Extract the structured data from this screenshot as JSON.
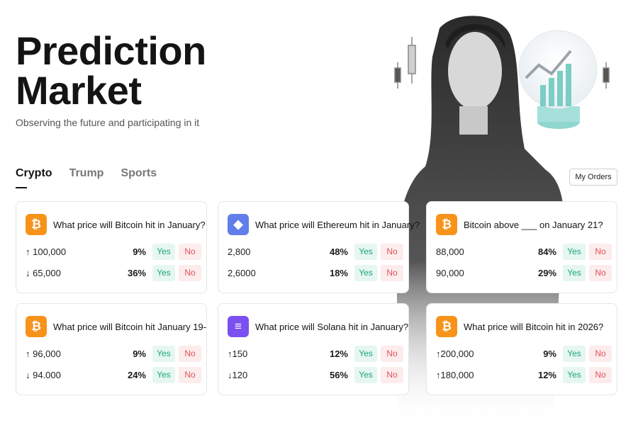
{
  "hero": {
    "title_line1": "Prediction",
    "title_line2": "Market",
    "subtitle": "Observing the future and participating in it"
  },
  "tabs": [
    {
      "label": "Crypto",
      "active": true
    },
    {
      "label": "Trump",
      "active": false
    },
    {
      "label": "Sports",
      "active": false
    }
  ],
  "my_orders_label": "My Orders",
  "colors": {
    "yes_bg": "#e6f6f1",
    "yes_text": "#1ba57a",
    "no_bg": "#fcecec",
    "no_text": "#e0525b",
    "btc": "#f7931a",
    "eth": "#627eea",
    "sol": "#7b4ff0"
  },
  "icons": {
    "btc": "bitcoin-icon",
    "eth": "ethereum-icon",
    "sol": "solana-icon",
    "up": "up-arrow-icon",
    "down": "down-arrow-icon"
  },
  "cards": [
    {
      "coin": "btc",
      "title": "What price will Bitcoin hit in January?",
      "rows": [
        {
          "label": "↑ 100,000",
          "pct": "9%",
          "yes": "Yes",
          "no": "No"
        },
        {
          "label": "↓ 65,000",
          "pct": "36%",
          "yes": "Yes",
          "no": "No"
        }
      ]
    },
    {
      "coin": "eth",
      "title": "What price will Ethereum hit in January?",
      "rows": [
        {
          "label": "2,800",
          "pct": "48%",
          "yes": "Yes",
          "no": "No"
        },
        {
          "label": "2,6000",
          "pct": "18%",
          "yes": "Yes",
          "no": "No"
        }
      ]
    },
    {
      "coin": "btc",
      "title": "Bitcoin above ___ on January 21?",
      "rows": [
        {
          "label": "88,000",
          "pct": "84%",
          "yes": "Yes",
          "no": "No"
        },
        {
          "label": "90,000",
          "pct": "29%",
          "yes": "Yes",
          "no": "No"
        }
      ]
    },
    {
      "coin": "btc",
      "title": "What price will Bitcoin hit January 19-",
      "rows": [
        {
          "label": "↑ 96,000",
          "pct": "9%",
          "yes": "Yes",
          "no": "No"
        },
        {
          "label": "↓ 94.000",
          "pct": "24%",
          "yes": "Yes",
          "no": "No"
        }
      ]
    },
    {
      "coin": "sol",
      "title": "What price will Solana hit in January?",
      "rows": [
        {
          "label": "↑150",
          "pct": "12%",
          "yes": "Yes",
          "no": "No"
        },
        {
          "label": "↓120",
          "pct": "56%",
          "yes": "Yes",
          "no": "No"
        }
      ]
    },
    {
      "coin": "btc",
      "title": "What price will Bitcoin hit in 2026?",
      "rows": [
        {
          "label": "↑200,000",
          "pct": "9%",
          "yes": "Yes",
          "no": "No"
        },
        {
          "label": "↑180,000",
          "pct": "12%",
          "yes": "Yes",
          "no": "No"
        }
      ]
    }
  ]
}
